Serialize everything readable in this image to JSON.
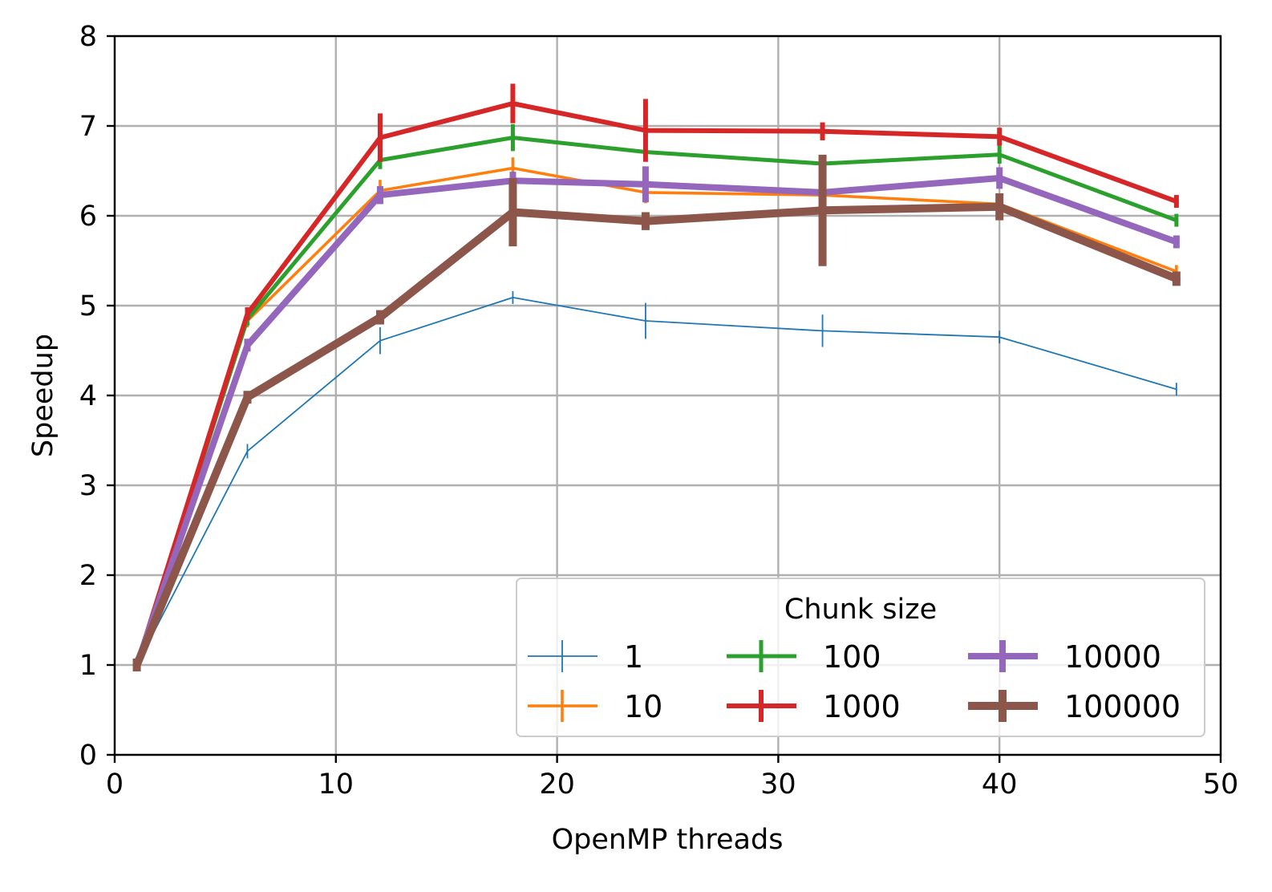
{
  "chart_data": {
    "type": "line",
    "xlabel": "OpenMP threads",
    "ylabel": "Speedup",
    "xlim": [
      0,
      50
    ],
    "ylim": [
      0,
      8
    ],
    "xticks": [
      0,
      10,
      20,
      30,
      40,
      50
    ],
    "yticks": [
      0,
      1,
      2,
      3,
      4,
      5,
      6,
      7,
      8
    ],
    "grid": true,
    "x": [
      1,
      6,
      12,
      18,
      24,
      32,
      40,
      48
    ],
    "legend": {
      "title": "Chunk size",
      "location": "lower-right",
      "columns": 3
    },
    "series": [
      {
        "name": "1",
        "color": "#1f77b4",
        "values": [
          1.0,
          3.38,
          4.61,
          5.09,
          4.83,
          4.72,
          4.65,
          4.07
        ],
        "errors": [
          0.0,
          0.08,
          0.15,
          0.05,
          0.2,
          0.18,
          0.06,
          0.05
        ]
      },
      {
        "name": "10",
        "color": "#ff7f0e",
        "values": [
          1.0,
          4.83,
          6.28,
          6.53,
          6.26,
          6.23,
          6.13,
          5.38
        ],
        "errors": [
          0.0,
          0.06,
          0.12,
          0.12,
          0.12,
          0.06,
          0.06,
          0.07
        ]
      },
      {
        "name": "100",
        "color": "#2ca02c",
        "values": [
          1.0,
          4.85,
          6.62,
          6.87,
          6.71,
          6.58,
          6.68,
          5.95
        ],
        "errors": [
          0.0,
          0.05,
          0.1,
          0.15,
          0.08,
          0.06,
          0.1,
          0.05
        ]
      },
      {
        "name": "1000",
        "color": "#d62728",
        "values": [
          1.0,
          4.91,
          6.87,
          7.25,
          6.95,
          6.94,
          6.88,
          6.16
        ],
        "errors": [
          0.0,
          0.05,
          0.27,
          0.22,
          0.35,
          0.1,
          0.1,
          0.06
        ]
      },
      {
        "name": "10000",
        "color": "#9467bd",
        "values": [
          1.0,
          4.56,
          6.23,
          6.39,
          6.35,
          6.26,
          6.42,
          5.71
        ],
        "errors": [
          0.0,
          0.05,
          0.1,
          0.1,
          0.2,
          0.06,
          0.12,
          0.06
        ]
      },
      {
        "name": "100000",
        "color": "#8c564b",
        "values": [
          1.0,
          3.98,
          4.87,
          6.04,
          5.94,
          6.06,
          6.1,
          5.3
        ],
        "errors": [
          0.0,
          0.05,
          0.08,
          0.38,
          0.1,
          0.62,
          0.15,
          0.08
        ]
      }
    ]
  }
}
